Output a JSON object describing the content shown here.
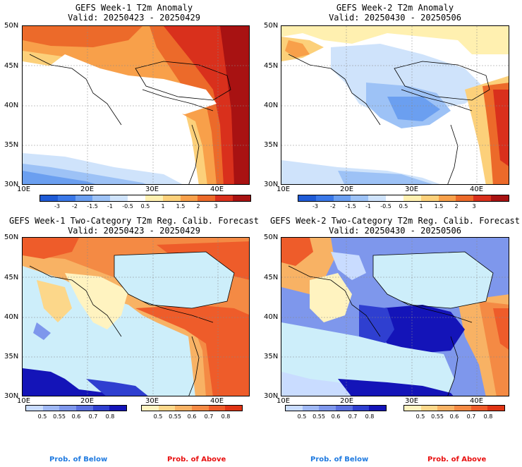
{
  "panels": [
    {
      "title": "GEFS Week-1 T2m Anomaly",
      "valid": "Valid: 20250423 - 20250429"
    },
    {
      "title": "GEFS Week-2 T2m Anomaly",
      "valid": "Valid: 20250430 - 20250506"
    },
    {
      "title": "GEFS Week-1 Two-Category T2m Reg. Calib. Forecast",
      "valid": "Valid: 20250423 - 20250429"
    },
    {
      "title": "GEFS Week-2 Two-Category T2m Reg. Calib. Forecast",
      "valid": "Valid: 20250430 - 20250506"
    }
  ],
  "lat_labels": [
    "50N",
    "45N",
    "40N",
    "35N",
    "30N"
  ],
  "lon_labels": [
    "10E",
    "20E",
    "30E",
    "40E"
  ],
  "anomaly_colorbar": {
    "labels": [
      "-3",
      "-2",
      "-1.5",
      "-1",
      "-0.5",
      "0.5",
      "1",
      "1.5",
      "2",
      "3"
    ],
    "colors": [
      "#1f5bd6",
      "#3a78e8",
      "#6b9ff0",
      "#9dc2f6",
      "#cfe3fb",
      "#ffffff",
      "#fff0b0",
      "#fcd07a",
      "#f8a04a",
      "#ec6a2a",
      "#d9301c",
      "#a81212"
    ]
  },
  "prob_colorbar": {
    "below_labels": [
      "0.5",
      "0.55",
      "0.6",
      "0.7",
      "0.8"
    ],
    "above_labels": [
      "0.5",
      "0.55",
      "0.6",
      "0.7",
      "0.8"
    ],
    "below_colors": [
      "#c9dcff",
      "#9fb8f5",
      "#7e97ec",
      "#5a6fe0",
      "#2f3fd0",
      "#1414b8"
    ],
    "above_colors": [
      "#fff3c0",
      "#fcd78a",
      "#f8b264",
      "#f48a44",
      "#ee5c2a",
      "#e03414"
    ],
    "below_label": "Prob. of Below",
    "above_label": "Prob. of Above",
    "below_color": "#1f7ae0",
    "above_color": "#e81010"
  },
  "sea_color": "#cdeefa"
}
